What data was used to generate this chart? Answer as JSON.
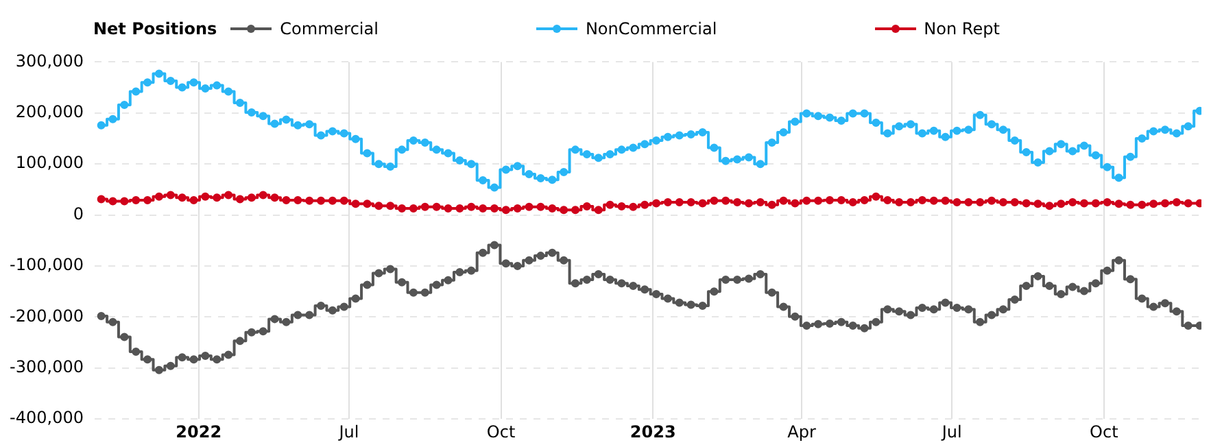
{
  "chart_data": {
    "type": "step",
    "legend_title": "Net Positions",
    "legend": "top",
    "grid": true,
    "marker": "circle",
    "line_style": "solid",
    "x": [
      "2022-02-01",
      "2022-02-08",
      "2022-02-15",
      "2022-02-22",
      "2022-03-01",
      "2022-03-08",
      "2022-03-15",
      "2022-03-22",
      "2022-03-29",
      "2022-04-05",
      "2022-04-12",
      "2022-04-19",
      "2022-04-26",
      "2022-05-03",
      "2022-05-10",
      "2022-05-17",
      "2022-05-24",
      "2022-05-31",
      "2022-06-07",
      "2022-06-14",
      "2022-06-21",
      "2022-06-28",
      "2022-07-05",
      "2022-07-12",
      "2022-07-19",
      "2022-07-26",
      "2022-08-02",
      "2022-08-09",
      "2022-08-16",
      "2022-08-23",
      "2022-08-30",
      "2022-09-06",
      "2022-09-13",
      "2022-09-20",
      "2022-09-27",
      "2022-10-04",
      "2022-10-11",
      "2022-10-18",
      "2022-10-25",
      "2022-11-01",
      "2022-11-08",
      "2022-11-15",
      "2022-11-22",
      "2022-11-29",
      "2022-12-06",
      "2022-12-13",
      "2022-12-20",
      "2022-12-27",
      "2023-01-03",
      "2023-01-10",
      "2023-01-17",
      "2023-01-24",
      "2023-01-31",
      "2023-02-07",
      "2023-02-14",
      "2023-02-21",
      "2023-02-28",
      "2023-03-07",
      "2023-03-14",
      "2023-03-21",
      "2023-03-28",
      "2023-04-04",
      "2023-04-11",
      "2023-04-18",
      "2023-04-25",
      "2023-05-02",
      "2023-05-09",
      "2023-05-16",
      "2023-05-23",
      "2023-05-30",
      "2023-06-06",
      "2023-06-13",
      "2023-06-20",
      "2023-06-27",
      "2023-07-04",
      "2023-07-11",
      "2023-07-18",
      "2023-07-25",
      "2023-08-01",
      "2023-08-08",
      "2023-08-15",
      "2023-08-22",
      "2023-08-29",
      "2023-09-05",
      "2023-09-12",
      "2023-09-19",
      "2023-09-26",
      "2023-10-03",
      "2023-10-10",
      "2023-10-17",
      "2023-10-24",
      "2023-10-31",
      "2023-11-07",
      "2023-11-14",
      "2023-11-21",
      "2023-11-28"
    ],
    "xlim": [
      "2022-01-28",
      "2023-11-29"
    ],
    "xticks": [
      {
        "value": "2022-04-01",
        "label": "2022"
      },
      {
        "value": "2022-07-01",
        "label": "Jul"
      },
      {
        "value": "2022-10-01",
        "label": "Oct"
      },
      {
        "value": "2023-01-01",
        "label": "2023"
      },
      {
        "value": "2023-04-01",
        "label": "Apr"
      },
      {
        "value": "2023-07-01",
        "label": "Jul"
      },
      {
        "value": "2023-10-01",
        "label": "Oct"
      }
    ],
    "ylim": [
      -400000,
      300000
    ],
    "yticks": [
      {
        "value": -400000,
        "label": "-400,000"
      },
      {
        "value": -300000,
        "label": "-300,000"
      },
      {
        "value": -200000,
        "label": "-200,000"
      },
      {
        "value": -100000,
        "label": "-100,000"
      },
      {
        "value": 0,
        "label": "0"
      },
      {
        "value": 100000,
        "label": "100,000"
      },
      {
        "value": 200000,
        "label": "200,000"
      },
      {
        "value": 300000,
        "label": "300,000"
      }
    ],
    "series": [
      {
        "name": "Commercial",
        "color": "#555555",
        "values": [
          -198000,
          -210000,
          -239000,
          -268000,
          -283000,
          -304000,
          -296000,
          -279000,
          -283000,
          -276000,
          -283000,
          -274000,
          -247000,
          -230000,
          -228000,
          -204000,
          -210000,
          -196000,
          -196000,
          -178000,
          -187000,
          -180000,
          -164000,
          -137000,
          -114000,
          -106000,
          -132000,
          -152000,
          -152000,
          -137000,
          -128000,
          -112000,
          -109000,
          -74000,
          -59000,
          -95000,
          -100000,
          -89000,
          -80000,
          -74000,
          -89000,
          -134000,
          -127000,
          -116000,
          -127000,
          -134000,
          -139000,
          -146000,
          -155000,
          -164000,
          -172000,
          -176000,
          -178000,
          -150000,
          -127000,
          -127000,
          -125000,
          -116000,
          -152000,
          -180000,
          -199000,
          -217000,
          -214000,
          -213000,
          -210000,
          -217000,
          -222000,
          -210000,
          -185000,
          -189000,
          -196000,
          -182000,
          -185000,
          -172000,
          -182000,
          -185000,
          -210000,
          -196000,
          -185000,
          -166000,
          -139000,
          -120000,
          -139000,
          -155000,
          -141000,
          -149000,
          -134000,
          -109000,
          -89000,
          -126000,
          -164000,
          -180000,
          -173000,
          -189000,
          -217000,
          -217000
        ]
      },
      {
        "name": "NonCommercial",
        "color": "#29b6f6",
        "values": [
          176000,
          188000,
          216000,
          242000,
          260000,
          277000,
          263000,
          250000,
          260000,
          248000,
          254000,
          242000,
          220000,
          201000,
          194000,
          179000,
          187000,
          176000,
          178000,
          156000,
          164000,
          160000,
          149000,
          121000,
          100000,
          95000,
          128000,
          146000,
          142000,
          128000,
          121000,
          107000,
          100000,
          68000,
          54000,
          89000,
          96000,
          80000,
          72000,
          69000,
          84000,
          128000,
          119000,
          112000,
          119000,
          128000,
          132000,
          139000,
          146000,
          153000,
          156000,
          158000,
          162000,
          132000,
          106000,
          109000,
          113000,
          100000,
          142000,
          162000,
          183000,
          199000,
          194000,
          191000,
          185000,
          199000,
          199000,
          181000,
          160000,
          174000,
          178000,
          160000,
          165000,
          153000,
          165000,
          167000,
          196000,
          178000,
          167000,
          146000,
          123000,
          103000,
          125000,
          139000,
          125000,
          136000,
          117000,
          94000,
          73000,
          114000,
          150000,
          164000,
          167000,
          160000,
          174000,
          204000
        ]
      },
      {
        "name": "Non Rept",
        "color": "#d0021b",
        "values": [
          31000,
          27000,
          27000,
          29000,
          29000,
          36000,
          39000,
          34000,
          29000,
          36000,
          34000,
          39000,
          31000,
          34000,
          39000,
          34000,
          29000,
          29000,
          28000,
          28000,
          28000,
          28000,
          22000,
          22000,
          18000,
          18000,
          13000,
          13000,
          16000,
          16000,
          13000,
          13000,
          16000,
          13000,
          13000,
          10000,
          13000,
          16000,
          16000,
          13000,
          10000,
          10000,
          17000,
          10000,
          20000,
          17000,
          16000,
          20000,
          23000,
          25000,
          25000,
          25000,
          23000,
          28000,
          28000,
          25000,
          23000,
          25000,
          20000,
          28000,
          23000,
          28000,
          28000,
          29000,
          29000,
          25000,
          29000,
          36000,
          29000,
          25000,
          25000,
          29000,
          28000,
          28000,
          25000,
          25000,
          25000,
          28000,
          25000,
          25000,
          23000,
          22000,
          18000,
          22000,
          25000,
          23000,
          23000,
          25000,
          22000,
          20000,
          20000,
          22000,
          23000,
          25000,
          23000,
          23000
        ]
      }
    ]
  }
}
